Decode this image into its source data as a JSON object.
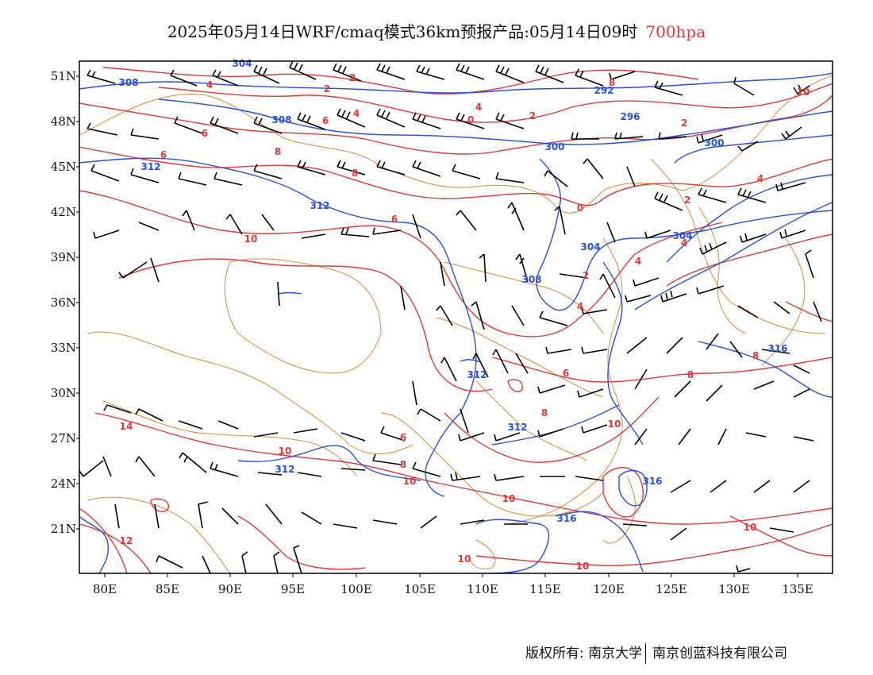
{
  "header": {
    "title": "2025年05月14日WRF/cmaq模式36km预报产品:05月14日09时",
    "level": "700hpa",
    "level_color": "#e03a3a"
  },
  "axes": {
    "lat_labels": [
      "51N",
      "48N",
      "45N",
      "42N",
      "39N",
      "36N",
      "33N",
      "30N",
      "27N",
      "24N",
      "21N"
    ],
    "lon_labels": [
      "80E",
      "85E",
      "90E",
      "95E",
      "100E",
      "105E",
      "110E",
      "115E",
      "120E",
      "125E",
      "130E",
      "135E"
    ]
  },
  "legend_colors": {
    "geopotential_height": "#2a4fe0",
    "temperature": "#e03a3a",
    "boundaries": "#d8893a",
    "wind_barbs": "#000000"
  },
  "geopotential_contours": {
    "color": "#2a4fe0",
    "labels": [
      "304",
      "308",
      "308",
      "312",
      "312",
      "304",
      "308",
      "312",
      "312",
      "312",
      "292",
      "296",
      "300",
      "300",
      "304",
      "316",
      "316",
      "316"
    ]
  },
  "temperature_contours": {
    "color": "#e03a3a",
    "labels": [
      "4",
      "2",
      "4",
      "2",
      "0",
      "2",
      "4",
      "6",
      "6",
      "6",
      "8",
      "8",
      "6",
      "10",
      "8",
      "10",
      "14",
      "12",
      "6",
      "6",
      "8",
      "10",
      "10",
      "8",
      "10",
      "10",
      "8",
      "8",
      "0",
      "2",
      "4",
      "4",
      "2",
      "4",
      "4",
      "2",
      "10",
      "10",
      "10"
    ]
  },
  "footer": {
    "left": "版权所有: 南京大学",
    "right": "南京创蓝科技有限公司"
  }
}
